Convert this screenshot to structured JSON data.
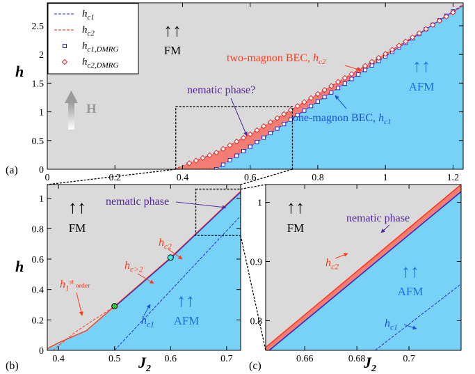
{
  "colors": {
    "fm": "#dadada",
    "afm": "#78d2f8",
    "nematic": "#f47d73",
    "hc1": "#2a2ad8",
    "hc2": "#d92a2a",
    "arrow_black": "#000000",
    "arrow_afm": "#1a6ee0",
    "nematic_label": "#55289a",
    "hc2_label": "#ff3a1a",
    "hc1_label": "#1a50d8",
    "gray_arrow": "#9a9a9a",
    "point_green": "#3ac23a",
    "point_cyan": "#4ae6e6",
    "zoom_box": "#000000"
  },
  "chart_data": [
    {
      "panel_label": "(a)",
      "type": "line",
      "xlim": [
        0,
        1.23
      ],
      "ylim": [
        0,
        2.9
      ],
      "x_ticks": [
        0,
        0.2,
        0.4,
        0.6,
        0.8,
        1,
        1.2
      ],
      "x_tick_labels": [
        "0",
        "0.2",
        "0.4",
        "0.6",
        "0.8",
        "1",
        "1.2"
      ],
      "y_ticks": [
        0,
        0.5,
        1,
        1.5,
        2,
        2.5
      ],
      "y_tick_labels": [
        "0",
        "0.5",
        "1",
        "1.5",
        "2",
        "2.5"
      ],
      "ylabel": "h",
      "legend": [
        {
          "label": "h",
          "sub": "c1",
          "style": "dashed",
          "color": "hc1"
        },
        {
          "label": "h",
          "sub": "c2",
          "style": "dashed",
          "color": "hc2"
        },
        {
          "label": "h",
          "sub": "c1,DMRG",
          "style": "square",
          "color": "hc1"
        },
        {
          "label": "h",
          "sub": "c2,DMRG",
          "style": "diamond",
          "color": "hc2"
        }
      ],
      "series": [
        {
          "name": "hc1",
          "x": [
            0.5,
            1.23
          ],
          "y": [
            0,
            2.87
          ]
        },
        {
          "name": "hc2",
          "x": [
            0.375,
            0.5,
            0.6,
            0.7,
            0.8,
            0.9,
            1.0,
            1.1,
            1.2,
            1.23
          ],
          "y": [
            0,
            0.29,
            0.61,
            0.96,
            1.31,
            1.66,
            2.01,
            2.37,
            2.73,
            2.85
          ]
        }
      ],
      "dmrg_c1": {
        "x_start": 0.5,
        "x_end": 1.2,
        "step": 0.02
      },
      "dmrg_c2": {
        "x_start": 0.42,
        "x_end": 1.2,
        "step": 0.02
      },
      "zoom_box": {
        "x": [
          0.38,
          0.725
        ],
        "y": [
          0,
          1.09
        ]
      },
      "annotations": {
        "fm_arrows": "↑↑",
        "fm": "FM",
        "afm_arrows": "↑↑",
        "afm": "AFM",
        "H_label": "H",
        "two_magnon": "two-magnon BEC, ",
        "two_magnon_h": "h",
        "two_magnon_sub": "c2",
        "one_magnon": "one-magnon BEC, ",
        "one_magnon_h": "h",
        "one_magnon_sub": "c1",
        "nematic": "nematic phase?"
      }
    },
    {
      "panel_label": "(b)",
      "type": "line",
      "xlim": [
        0.38,
        0.725
      ],
      "ylim": [
        0,
        1.09
      ],
      "x_ticks": [
        0.4,
        0.5,
        0.6,
        0.7
      ],
      "x_tick_labels": [
        "0.4",
        "0.5",
        "0.6",
        "0.7"
      ],
      "y_ticks": [
        0,
        0.2,
        0.4,
        0.6,
        0.8,
        1
      ],
      "y_tick_labels": [
        "0",
        "0.2",
        "0.4",
        "0.6",
        "0.8",
        "1"
      ],
      "xlabel": "J",
      "xlabel_sub": "2",
      "ylabel": "h",
      "series": [
        {
          "name": "hc1",
          "x": [
            0.5,
            0.725
          ],
          "y": [
            0,
            0.884
          ]
        },
        {
          "name": "hc2",
          "x": [
            0.375,
            0.4,
            0.45,
            0.5,
            0.6,
            0.7,
            0.725
          ],
          "y": [
            0,
            0.05,
            0.13,
            0.29,
            0.61,
            0.96,
            1.045
          ]
        },
        {
          "name": "h1st",
          "x": [
            0.39,
            0.43,
            0.5
          ],
          "y": [
            0,
            0.12,
            0.29
          ]
        }
      ],
      "points": [
        {
          "name": "green-point",
          "x": 0.5,
          "y": 0.29,
          "color": "point_green"
        },
        {
          "name": "cyan-point",
          "x": 0.6,
          "y": 0.61,
          "color": "point_cyan"
        }
      ],
      "zoom_box": {
        "x": [
          0.645,
          0.725
        ],
        "y": [
          0.755,
          1.06
        ]
      },
      "annotations": {
        "fm_arrows": "↑↑",
        "fm": "FM",
        "afm_arrows": "↑↑",
        "afm": "AFM",
        "nematic": "nematic phase",
        "hc2_h": "h",
        "hc2_sub": "c2",
        "hcg2_h": "h",
        "hcg2_sub": "c>2",
        "h1st_h": "h",
        "h1st_sub": "1",
        "h1st_sup": "st",
        "h1st_tail": " order",
        "hc1_h": "h",
        "hc1_sub": "c1"
      }
    },
    {
      "panel_label": "(c)",
      "type": "line",
      "xlim": [
        0.645,
        0.72
      ],
      "ylim": [
        0.75,
        1.03
      ],
      "x_ticks": [
        0.66,
        0.68,
        0.7
      ],
      "x_tick_labels": [
        "0.66",
        "0.68",
        "0.7"
      ],
      "y_ticks": [
        0.8,
        0.9,
        1
      ],
      "y_tick_labels": [
        "0.8",
        "0.9",
        "1"
      ],
      "xlabel": "J",
      "xlabel_sub": "2",
      "series": [
        {
          "name": "hc1_solid",
          "x": [
            0.645,
            0.72
          ],
          "y": [
            0.745,
            1.018
          ]
        },
        {
          "name": "hc2",
          "x": [
            0.645,
            0.72
          ],
          "y": [
            0.755,
            1.03
          ]
        },
        {
          "name": "hc1_dashed",
          "x": [
            0.687,
            0.72
          ],
          "y": [
            0.75,
            0.862
          ]
        }
      ],
      "annotations": {
        "fm_arrows": "↑↑",
        "fm": "FM",
        "afm_arrows": "↑↑",
        "afm": "AFM",
        "nematic": "nematic phase",
        "hc2_h": "h",
        "hc2_sub": "c2",
        "hc1_h": "h",
        "hc1_sub": "c1"
      }
    }
  ]
}
